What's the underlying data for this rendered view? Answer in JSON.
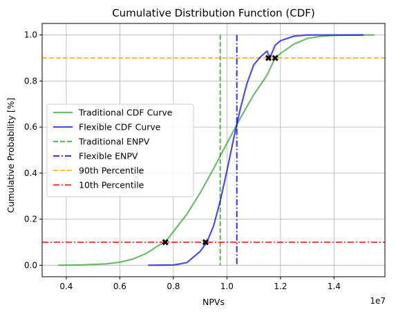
{
  "chart_data": {
    "type": "line",
    "title": "Cumulative Distribution Function (CDF)",
    "xlabel": "NPVs",
    "ylabel": "Cumulative Probability [%]",
    "x_scale_label": "1e7",
    "xlim": [
      3.1,
      15.9
    ],
    "ylim": [
      -0.05,
      1.05
    ],
    "x_ticks": [
      0.4,
      0.6,
      0.8,
      1.0,
      1.2,
      1.4
    ],
    "x_tick_labels": [
      "0.4",
      "0.6",
      "0.8",
      "1.0",
      "1.2",
      "1.4"
    ],
    "y_ticks": [
      0.0,
      0.2,
      0.4,
      0.6,
      0.8,
      1.0
    ],
    "y_tick_labels": [
      "0.0",
      "0.2",
      "0.4",
      "0.6",
      "0.8",
      "1.0"
    ],
    "grid": true,
    "legend_position": "center-left",
    "series": [
      {
        "name": "Traditional CDF Curve",
        "color": "#2ca02c",
        "style": "solid",
        "x": [
          3.7,
          4.5,
          5.5,
          6.0,
          6.5,
          7.0,
          7.5,
          7.7,
          8.0,
          8.5,
          9.0,
          9.5,
          10.0,
          10.5,
          11.0,
          11.5,
          11.8,
          12.0,
          12.5,
          13.0,
          13.5,
          14.0,
          15.0,
          15.5
        ],
        "y": [
          0.0,
          0.001,
          0.006,
          0.013,
          0.027,
          0.052,
          0.09,
          0.1,
          0.146,
          0.221,
          0.314,
          0.419,
          0.53,
          0.639,
          0.74,
          0.826,
          0.9,
          0.92,
          0.96,
          0.985,
          0.994,
          0.998,
          1.0,
          1.0
        ]
      },
      {
        "name": "Flexible CDF Curve",
        "color": "#0000dd",
        "style": "solid",
        "x": [
          7.05,
          8.0,
          8.5,
          9.0,
          9.25,
          9.5,
          9.75,
          10.0,
          10.25,
          10.5,
          10.75,
          11.0,
          11.25,
          11.5,
          11.6,
          11.8,
          12.0,
          12.5,
          13.0,
          14.0,
          15.1
        ],
        "y": [
          0.0,
          0.001,
          0.011,
          0.06,
          0.1,
          0.17,
          0.28,
          0.41,
          0.55,
          0.68,
          0.79,
          0.87,
          0.905,
          0.93,
          0.9,
          0.955,
          0.975,
          0.995,
          1.0,
          1.0,
          1.0
        ]
      }
    ],
    "reference_lines": [
      {
        "name": "Traditional ENPV",
        "orientation": "vertical",
        "value": 9.75,
        "color": "#2ca02c",
        "style": "dashed"
      },
      {
        "name": "Flexible ENPV",
        "orientation": "vertical",
        "value": 10.37,
        "color": "#0000dd",
        "style": "dashdot"
      },
      {
        "name": "90th Percentile",
        "orientation": "horizontal",
        "value": 0.9,
        "color": "#ffa500",
        "style": "dashed"
      },
      {
        "name": "10th Percentile",
        "orientation": "horizontal",
        "value": 0.1,
        "color": "#ff0000",
        "style": "dashdot"
      }
    ],
    "markers": [
      {
        "x": 7.7,
        "y": 0.1
      },
      {
        "x": 9.2,
        "y": 0.1
      },
      {
        "x": 11.55,
        "y": 0.9
      },
      {
        "x": 11.8,
        "y": 0.9
      }
    ]
  }
}
